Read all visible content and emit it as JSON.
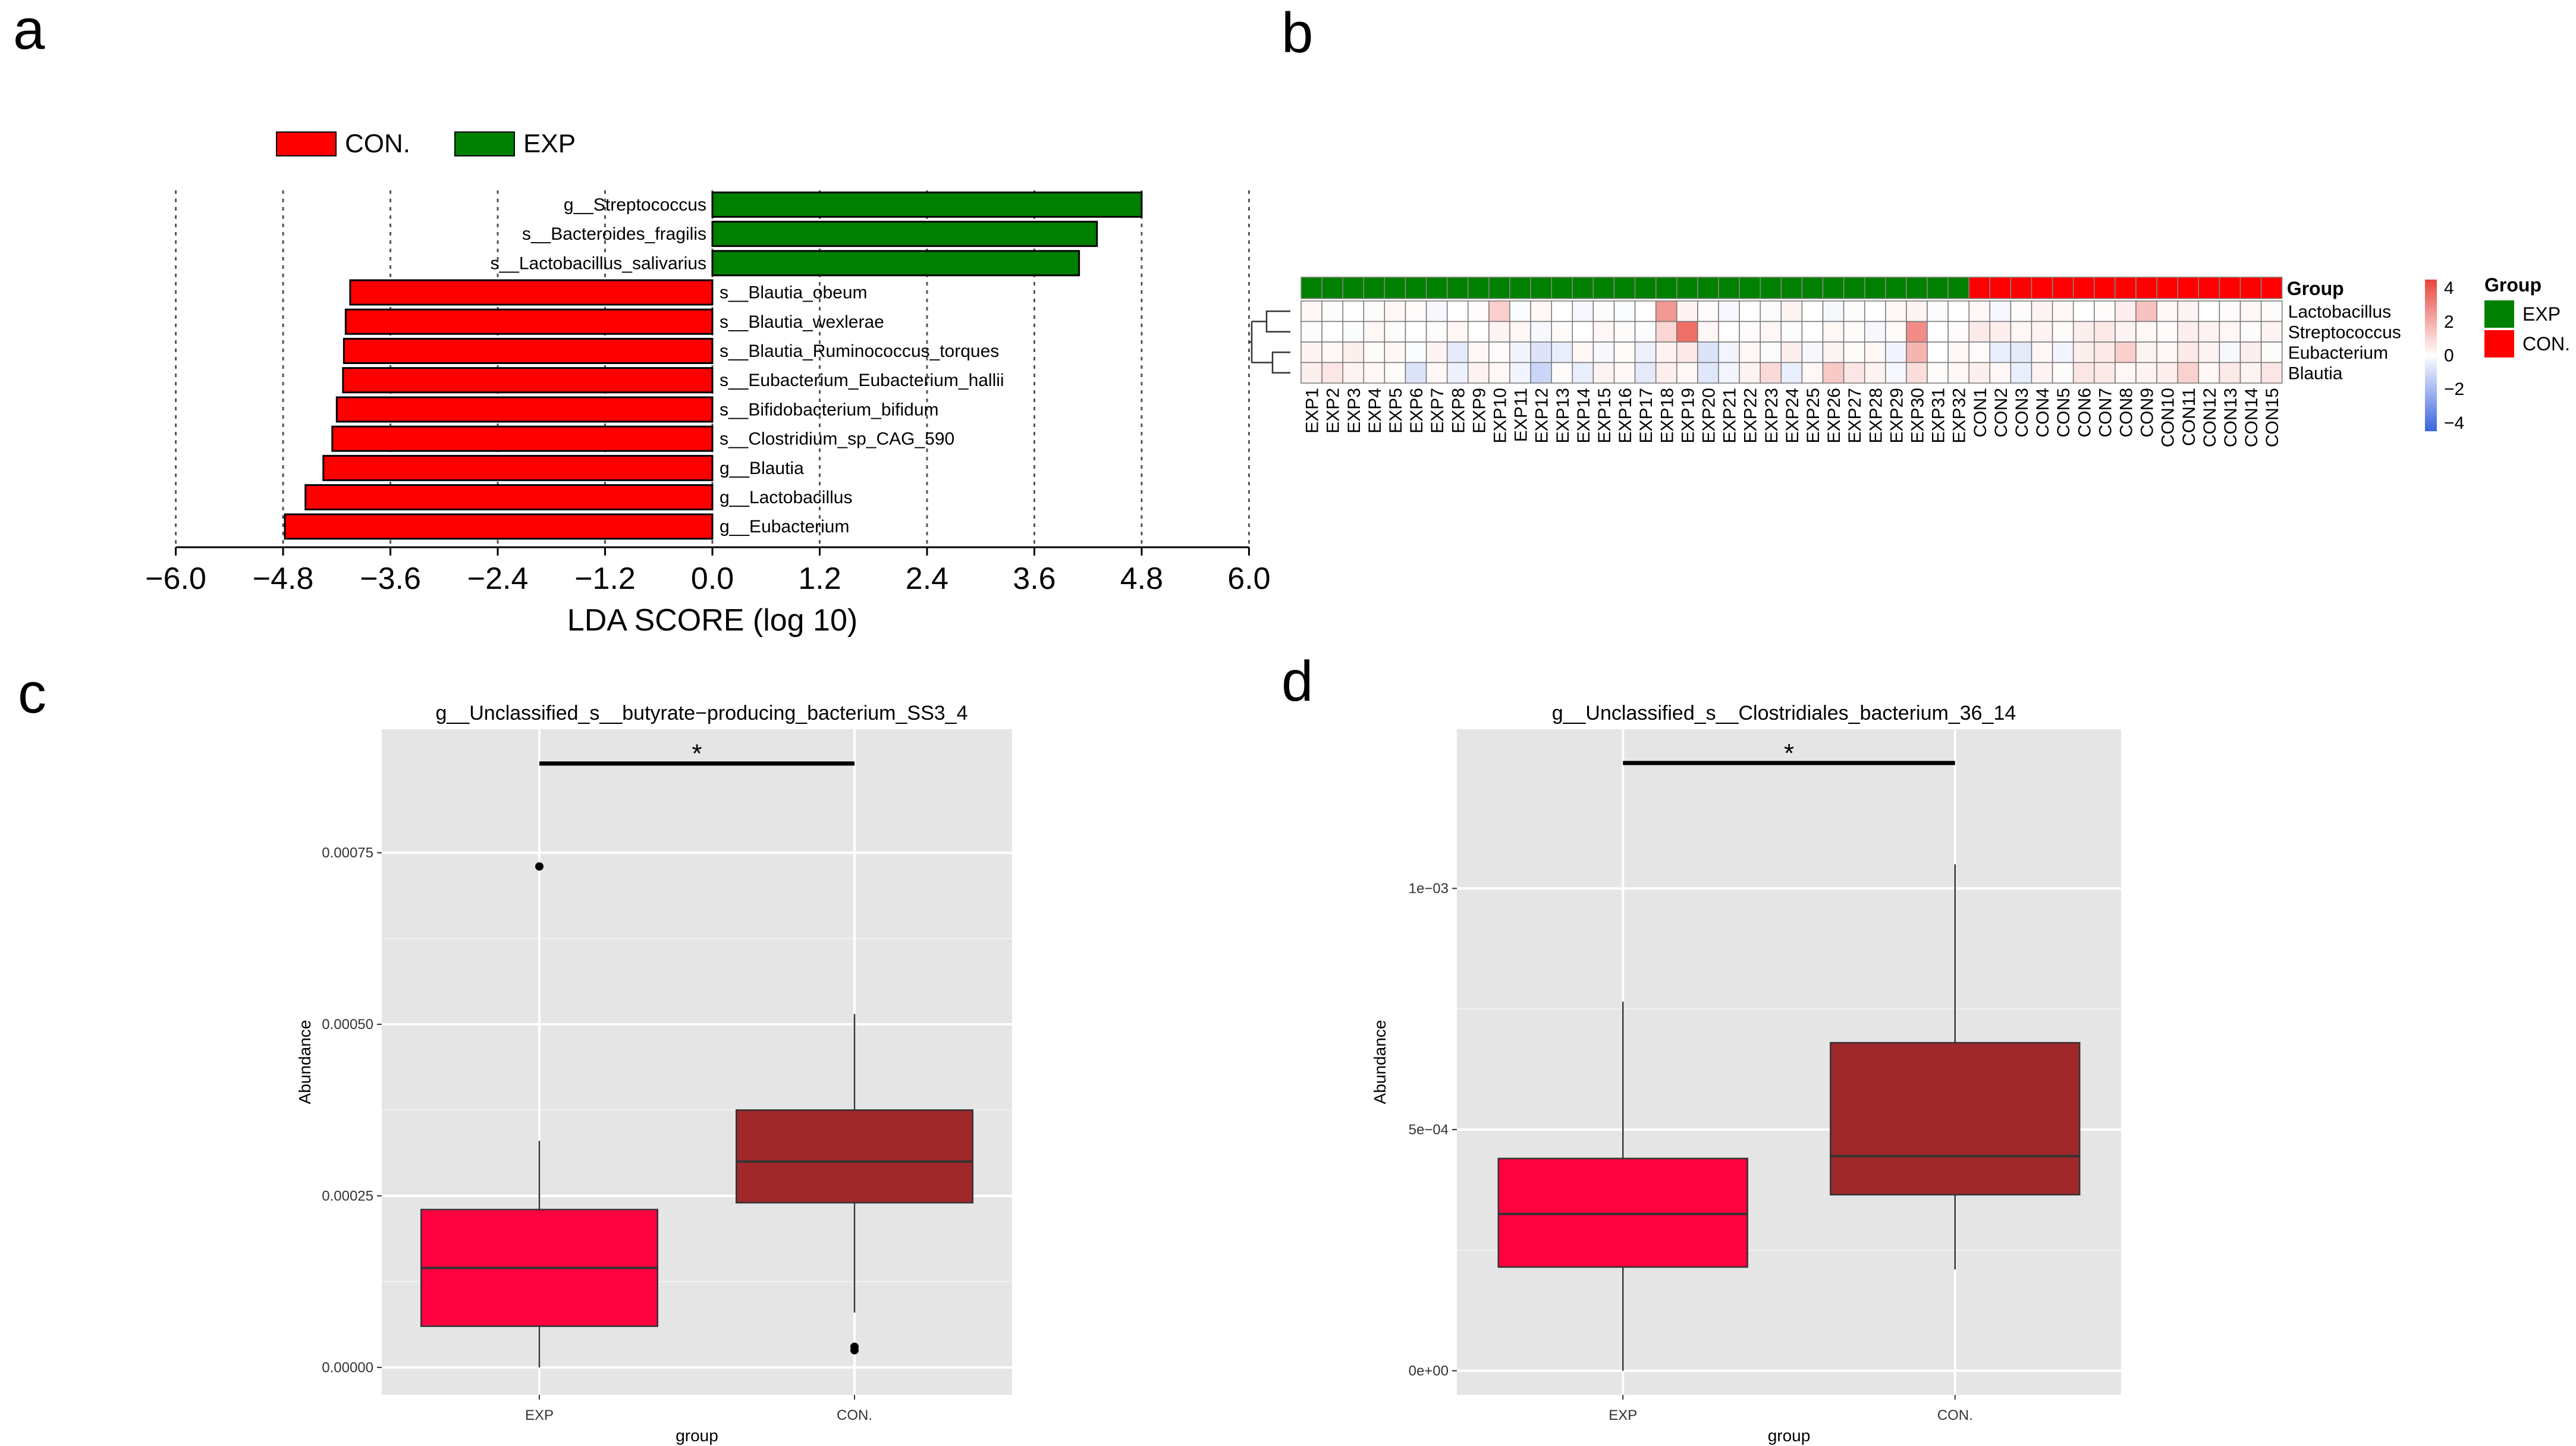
{
  "panels": {
    "a": "a",
    "b": "b",
    "c": "c",
    "d": "d"
  },
  "colors": {
    "con_red": "#ff0000",
    "exp_green": "#008000",
    "box_exp": "#ff0040",
    "box_con": "#a0282a",
    "panel_bg": "#e5e5e5",
    "heat_high": "#e8463c",
    "heat_low": "#3a64e0"
  },
  "chart_data": [
    {
      "panel": "a",
      "type": "bar",
      "orientation": "horizontal",
      "xlabel": "LDA SCORE (log 10)",
      "xlim": [
        -6.0,
        6.0
      ],
      "xticks": [
        "−6.0",
        "−4.8",
        "−3.6",
        "−2.4",
        "−1.2",
        "0.0",
        "1.2",
        "2.4",
        "3.6",
        "4.8",
        "6.0"
      ],
      "xtick_values": [
        -6.0,
        -4.8,
        -3.6,
        -2.4,
        -1.2,
        0.0,
        1.2,
        2.4,
        3.6,
        4.8,
        6.0
      ],
      "grid": "vertical dotted",
      "legend": {
        "position": "top-left",
        "items": [
          {
            "label": "CON.",
            "color": "#ff0000"
          },
          {
            "label": "EXP",
            "color": "#008000"
          }
        ]
      },
      "bars": [
        {
          "label": "g__Streptococcus",
          "value": 4.8,
          "group": "EXP"
        },
        {
          "label": "s__Bacteroides_fragilis",
          "value": 4.3,
          "group": "EXP"
        },
        {
          "label": "s__Lactobacillus_salivarius",
          "value": 4.1,
          "group": "EXP"
        },
        {
          "label": "s__Blautia_obeum",
          "value": -4.05,
          "group": "CON."
        },
        {
          "label": "s__Blautia_wexlerae",
          "value": -4.1,
          "group": "CON."
        },
        {
          "label": "s__Blautia_Ruminococcus_torques",
          "value": -4.12,
          "group": "CON."
        },
        {
          "label": "s__Eubacterium_Eubacterium_hallii",
          "value": -4.13,
          "group": "CON."
        },
        {
          "label": "s__Bifidobacterium_bifidum",
          "value": -4.2,
          "group": "CON."
        },
        {
          "label": "s__Clostridium_sp_CAG_590",
          "value": -4.25,
          "group": "CON."
        },
        {
          "label": "g__Blautia",
          "value": -4.35,
          "group": "CON."
        },
        {
          "label": "g__Lactobacillus",
          "value": -4.55,
          "group": "CON."
        },
        {
          "label": "g__Eubacterium",
          "value": -4.78,
          "group": "CON."
        }
      ]
    },
    {
      "panel": "b",
      "type": "heatmap",
      "rows": [
        "Lactobacillus",
        "Streptococcus",
        "Eubacterium",
        "Blautia"
      ],
      "columns": [
        "EXP1",
        "EXP2",
        "EXP3",
        "EXP4",
        "EXP5",
        "EXP6",
        "EXP7",
        "EXP8",
        "EXP9",
        "EXP10",
        "EXP11",
        "EXP12",
        "EXP13",
        "EXP14",
        "EXP15",
        "EXP16",
        "EXP17",
        "EXP18",
        "EXP19",
        "EXP20",
        "EXP21",
        "EXP22",
        "EXP23",
        "EXP24",
        "EXP25",
        "EXP26",
        "EXP27",
        "EXP28",
        "EXP29",
        "EXP30",
        "EXP31",
        "EXP32",
        "CON1",
        "CON2",
        "CON3",
        "CON4",
        "CON5",
        "CON6",
        "CON7",
        "CON8",
        "CON9",
        "CON10",
        "CON11",
        "CON12",
        "CON13",
        "CON14",
        "CON15"
      ],
      "column_groups": [
        "EXP",
        "EXP",
        "EXP",
        "EXP",
        "EXP",
        "EXP",
        "EXP",
        "EXP",
        "EXP",
        "EXP",
        "EXP",
        "EXP",
        "EXP",
        "EXP",
        "EXP",
        "EXP",
        "EXP",
        "EXP",
        "EXP",
        "EXP",
        "EXP",
        "EXP",
        "EXP",
        "EXP",
        "EXP",
        "EXP",
        "EXP",
        "EXP",
        "EXP",
        "EXP",
        "EXP",
        "EXP",
        "CON.",
        "CON.",
        "CON.",
        "CON.",
        "CON.",
        "CON.",
        "CON.",
        "CON.",
        "CON.",
        "CON.",
        "CON.",
        "CON.",
        "CON.",
        "CON.",
        "CON."
      ],
      "values": [
        [
          0.2,
          0.1,
          0.0,
          0.1,
          0.2,
          0.1,
          -0.2,
          0.0,
          0.1,
          1.2,
          -0.1,
          0.2,
          0.0,
          -0.2,
          0.1,
          -0.1,
          0.0,
          2.5,
          0.3,
          0.1,
          -0.2,
          0.0,
          -0.1,
          0.3,
          0.0,
          -0.2,
          0.1,
          0.0,
          0.2,
          0.3,
          -0.1,
          0.0,
          0.2,
          -0.2,
          0.1,
          0.3,
          0.2,
          0.0,
          0.1,
          0.4,
          1.5,
          0.2,
          0.3,
          0.0,
          0.1,
          0.2,
          0.1
        ],
        [
          0.1,
          0.0,
          -0.1,
          0.2,
          0.1,
          0.0,
          0.1,
          0.2,
          0.0,
          0.3,
          0.2,
          -0.2,
          0.1,
          0.0,
          0.2,
          0.1,
          -0.1,
          1.0,
          3.5,
          0.2,
          0.0,
          0.1,
          0.2,
          -0.1,
          0.0,
          0.2,
          0.1,
          -0.2,
          0.1,
          2.8,
          0.0,
          0.1,
          0.5,
          0.4,
          0.2,
          0.3,
          0.1,
          0.4,
          0.5,
          0.3,
          0.2,
          0.1,
          0.4,
          0.3,
          0.2,
          0.1,
          0.3
        ],
        [
          0.3,
          0.2,
          0.4,
          0.1,
          0.2,
          -0.1,
          0.3,
          -0.6,
          0.2,
          0.1,
          -0.3,
          -0.8,
          -0.5,
          0.2,
          -0.2,
          0.1,
          -0.4,
          0.3,
          0.5,
          -0.8,
          -0.3,
          0.2,
          -0.1,
          0.4,
          -0.2,
          0.3,
          0.1,
          0.2,
          -0.3,
          1.8,
          0.0,
          0.2,
          0.1,
          -0.5,
          -0.6,
          0.2,
          -0.3,
          0.4,
          0.5,
          1.2,
          0.3,
          0.2,
          0.5,
          0.3,
          -0.2,
          0.4,
          0.1
        ],
        [
          0.4,
          0.6,
          0.3,
          0.2,
          0.1,
          -0.8,
          0.2,
          -0.4,
          0.3,
          0.2,
          -0.3,
          -1.2,
          0.1,
          -0.5,
          0.3,
          0.2,
          -0.6,
          0.4,
          0.2,
          -0.7,
          -0.3,
          0.3,
          0.9,
          -0.5,
          0.2,
          1.3,
          0.6,
          0.3,
          -0.2,
          0.8,
          0.1,
          0.2,
          0.4,
          0.2,
          -0.5,
          0.3,
          0.1,
          0.6,
          0.5,
          0.2,
          0.3,
          0.4,
          1.1,
          0.2,
          0.5,
          0.3,
          0.6
        ]
      ],
      "colorbar": {
        "ticks": [
          "4",
          "2",
          "0",
          "−2",
          "−4"
        ],
        "range": [
          -4.5,
          4.5
        ]
      },
      "group_annotation_label": "Group",
      "legend": {
        "title": "Group",
        "position": "right",
        "items": [
          {
            "label": "EXP",
            "color": "#008000"
          },
          {
            "label": "CON.",
            "color": "#ff0000"
          }
        ]
      }
    },
    {
      "panel": "c",
      "type": "box",
      "title": "g__Unclassified_s__butyrate−producing_bacterium_SS3_4",
      "xlabel": "group",
      "ylabel": "Abundance",
      "categories": [
        "EXP",
        "CON."
      ],
      "ylim": [
        -4e-05,
        0.00093
      ],
      "yticks": [
        "0.00000",
        "0.00025",
        "0.00050",
        "0.00075"
      ],
      "ytick_values": [
        0.0,
        0.00025,
        0.0005,
        0.00075
      ],
      "boxes": [
        {
          "category": "EXP",
          "q1": 6e-05,
          "median": 0.000145,
          "q3": 0.00023,
          "whisker_low": 0.0,
          "whisker_high": 0.00033,
          "outliers": [
            0.00073
          ],
          "color": "#ff0040"
        },
        {
          "category": "CON.",
          "q1": 0.00024,
          "median": 0.0003,
          "q3": 0.000375,
          "whisker_low": 8e-05,
          "whisker_high": 0.000515,
          "outliers": [
            2.5e-05,
            3e-05
          ],
          "color": "#a0282a"
        }
      ],
      "significance": {
        "label": "*",
        "y": 0.00088
      },
      "grid": true
    },
    {
      "panel": "d",
      "type": "box",
      "title": "g__Unclassified_s__Clostridiales_bacterium_36_14",
      "xlabel": "group",
      "ylabel": "Abundance",
      "categories": [
        "EXP",
        "CON."
      ],
      "ylim": [
        -5e-05,
        0.00133
      ],
      "yticks": [
        "0e+00",
        "5e−04",
        "1e−03"
      ],
      "ytick_values": [
        0.0,
        0.0005,
        0.001
      ],
      "boxes": [
        {
          "category": "EXP",
          "q1": 0.000215,
          "median": 0.000325,
          "q3": 0.00044,
          "whisker_low": 0.0,
          "whisker_high": 0.000765,
          "outliers": [],
          "color": "#ff0040"
        },
        {
          "category": "CON.",
          "q1": 0.000365,
          "median": 0.000445,
          "q3": 0.00068,
          "whisker_low": 0.00021,
          "whisker_high": 0.00105,
          "outliers": [],
          "color": "#a0282a"
        }
      ],
      "significance": {
        "label": "*",
        "y": 0.00126
      },
      "grid": true
    }
  ]
}
